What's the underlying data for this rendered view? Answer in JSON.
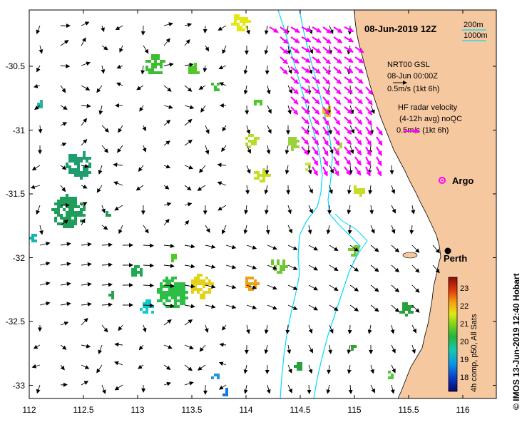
{
  "map": {
    "title": "08-Jun-2019 12Z",
    "lon_range": [
      112,
      116.3
    ],
    "lat_range": [
      -33.1,
      -30.08
    ],
    "x_ticks": [
      "112",
      "112.5",
      "113",
      "113.5",
      "114",
      "114.5",
      "115",
      "115.5",
      "116"
    ],
    "y_ticks": [
      "-30.5",
      "-31",
      "-31.5",
      "-32",
      "-32.5",
      "-33"
    ],
    "land_color": "#f5c8a0",
    "ocean_color": "#ffffff",
    "isobath_color": "#00d8ff"
  },
  "bathymetry_legend": {
    "label_200": "200m",
    "label_1000": "1000m"
  },
  "velocity_legend": {
    "nrt_title": "NRT00 GSL",
    "nrt_time": "08-Jun 00:00Z",
    "nrt_scale": "0.5m/s (1kt 6h)",
    "hf_title": "HF radar velocity",
    "hf_sub": "(4-12h avg) noQC",
    "hf_scale": "0.5m/s (1kt 6h)",
    "hf_color": "#ff00ff"
  },
  "argo": {
    "label": "Argo",
    "lon": 115.87,
    "lat": -31.45,
    "color": "#ff00ff"
  },
  "city": {
    "label": "Perth",
    "lon": 115.86,
    "lat": -31.95
  },
  "colorbar": {
    "ticks": [
      "23",
      "22",
      "21",
      "20",
      "19",
      "18"
    ],
    "min": 17.5,
    "max": 23.5,
    "label": "4h comp, p50, All Sats"
  },
  "credit": {
    "text": "© IMOS 13-Jun-2019 12:40 Hobart"
  }
}
